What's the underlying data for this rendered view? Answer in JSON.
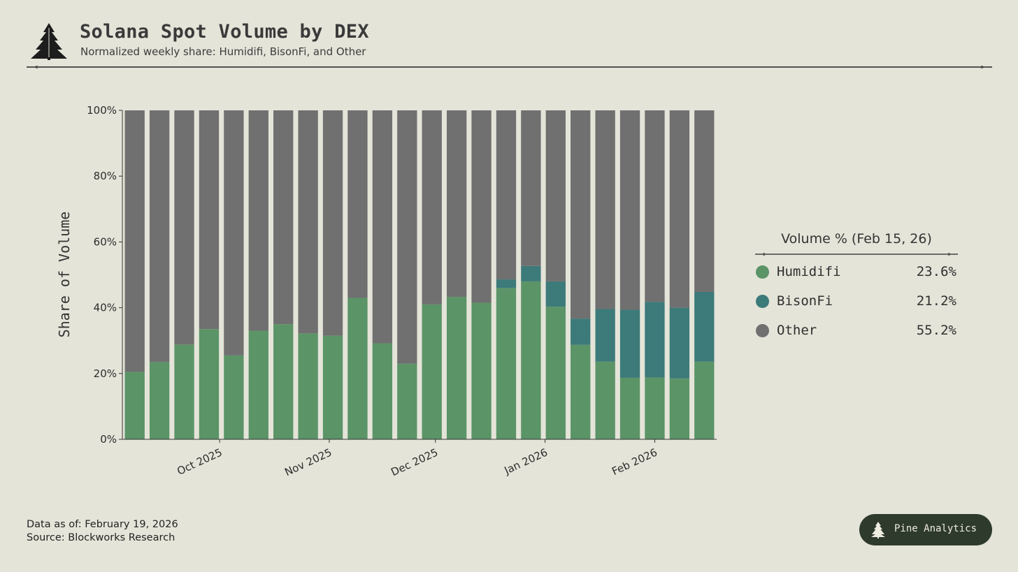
{
  "header": {
    "title": "Solana Spot Volume by DEX",
    "subtitle": "Normalized weekly share: Humidifi, BisonFi, and Other"
  },
  "legend": {
    "title": "Volume % (Feb 15, 26)",
    "items": [
      {
        "name": "Humidifi",
        "value": "23.6%",
        "color": "#5b9467"
      },
      {
        "name": "BisonFi",
        "value": "21.2%",
        "color": "#3d7a7a"
      },
      {
        "name": "Other",
        "value": "55.2%",
        "color": "#707070"
      }
    ]
  },
  "footer": {
    "as_of": "Data as of: February 19, 2026",
    "source": "Source: Blockworks Research"
  },
  "badge": {
    "label": "Pine Analytics"
  },
  "chart_data": {
    "type": "bar",
    "stacked": true,
    "ylabel": "Share of Volume",
    "ylim": [
      0,
      100
    ],
    "y_ticks": [
      "0%",
      "20%",
      "40%",
      "60%",
      "80%",
      "100%"
    ],
    "x_ticks": [
      "Oct 2025",
      "Nov 2025",
      "Dec 2025",
      "Jan 2026",
      "Feb 2026"
    ],
    "categories": [
      "2025-09-07",
      "2025-09-14",
      "2025-09-21",
      "2025-09-28",
      "2025-10-05",
      "2025-10-12",
      "2025-10-19",
      "2025-10-26",
      "2025-11-02",
      "2025-11-09",
      "2025-11-16",
      "2025-11-23",
      "2025-11-30",
      "2025-12-07",
      "2025-12-14",
      "2025-12-21",
      "2025-12-28",
      "2026-01-04",
      "2026-01-11",
      "2026-01-18",
      "2026-01-25",
      "2026-02-01",
      "2026-02-08",
      "2026-02-15"
    ],
    "series": [
      {
        "name": "Humidifi",
        "color": "#5b9467",
        "values": [
          20.5,
          23.5,
          28.8,
          33.5,
          25.5,
          33.0,
          35.0,
          32.2,
          31.5,
          43.0,
          29.2,
          23.0,
          41.0,
          43.3,
          41.5,
          46.0,
          48.0,
          40.3,
          28.7,
          23.6,
          18.7,
          18.8,
          18.5,
          23.6
        ]
      },
      {
        "name": "BisonFi",
        "color": "#3d7a7a",
        "values": [
          0,
          0,
          0,
          0,
          0,
          0,
          0,
          0,
          0,
          0,
          0,
          0,
          0,
          0,
          0,
          2.6,
          4.7,
          7.7,
          8.0,
          16.0,
          20.7,
          23.0,
          21.5,
          21.2
        ]
      },
      {
        "name": "Other",
        "color": "#707070",
        "values": [
          79.5,
          76.5,
          71.2,
          66.5,
          74.5,
          67.0,
          65.0,
          67.8,
          68.5,
          57.0,
          70.8,
          77.0,
          59.0,
          56.7,
          58.5,
          51.4,
          47.3,
          52.0,
          63.3,
          60.4,
          60.6,
          58.2,
          60.0,
          55.2
        ]
      }
    ],
    "grid": false,
    "legend_position": "right"
  }
}
